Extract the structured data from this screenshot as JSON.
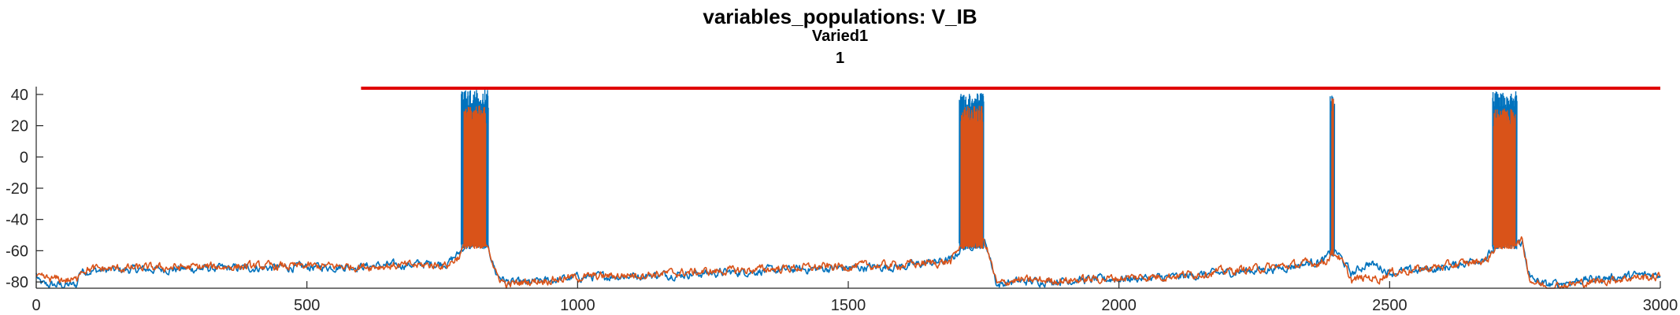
{
  "title": "variables_populations: V_IB",
  "subtitle_1": "Varied1",
  "subtitle_2": "1",
  "colors": {
    "series_blue": "#0072bd",
    "series_orange": "#d95319",
    "threshold_red": "#e00000",
    "axis": "#262626"
  },
  "chart_data": {
    "type": "line",
    "title": "variables_populations: V_IB",
    "xlabel": "",
    "ylabel": "",
    "xlim": [
      0,
      3000
    ],
    "ylim": [
      -84,
      45
    ],
    "x_ticks": [
      0,
      500,
      1000,
      1500,
      2000,
      2500,
      3000
    ],
    "y_ticks": [
      -80,
      -60,
      -40,
      -20,
      0,
      20,
      40
    ],
    "grid": false,
    "legend": "none",
    "threshold_line": {
      "y": 44,
      "x_start": 600,
      "x_end": 3000
    },
    "series": [
      {
        "color": "#0072bd",
        "baseline": [
          [
            0,
            -75
          ],
          [
            5,
            -80
          ],
          [
            15,
            -82
          ],
          [
            75,
            -82
          ],
          [
            80,
            -73
          ],
          [
            200,
            -72
          ],
          [
            400,
            -71
          ],
          [
            600,
            -70
          ],
          [
            760,
            -68
          ],
          [
            780,
            -62
          ],
          [
            795,
            -55
          ],
          [
            835,
            -58
          ],
          [
            850,
            -75
          ],
          [
            870,
            -80
          ],
          [
            900,
            -81
          ],
          [
            1000,
            -77
          ],
          [
            1200,
            -75
          ],
          [
            1400,
            -72
          ],
          [
            1600,
            -70
          ],
          [
            1690,
            -66
          ],
          [
            1710,
            -58
          ],
          [
            1750,
            -54
          ],
          [
            1755,
            -56
          ],
          [
            1775,
            -82
          ],
          [
            1800,
            -80
          ],
          [
            1900,
            -79
          ],
          [
            2100,
            -77
          ],
          [
            2300,
            -71
          ],
          [
            2380,
            -66
          ],
          [
            2395,
            -60
          ],
          [
            2405,
            -62
          ],
          [
            2430,
            -75
          ],
          [
            2460,
            -68
          ],
          [
            2480,
            -70
          ],
          [
            2500,
            -74
          ],
          [
            2600,
            -71
          ],
          [
            2680,
            -64
          ],
          [
            2700,
            -56
          ],
          [
            2745,
            -55
          ],
          [
            2760,
            -78
          ],
          [
            2790,
            -82
          ],
          [
            2850,
            -79
          ],
          [
            2950,
            -76
          ],
          [
            3000,
            -75
          ]
        ],
        "bursts": [
          [
            785,
            835,
            -55,
            43
          ],
          [
            1705,
            1750,
            -55,
            41
          ],
          [
            2390,
            2398,
            -60,
            40
          ],
          [
            2690,
            2735,
            -55,
            42
          ]
        ]
      },
      {
        "color": "#d95319",
        "baseline": [
          [
            0,
            -76
          ],
          [
            5,
            -78
          ],
          [
            15,
            -78
          ],
          [
            75,
            -79
          ],
          [
            80,
            -72
          ],
          [
            200,
            -71
          ],
          [
            400,
            -70
          ],
          [
            600,
            -70
          ],
          [
            760,
            -69
          ],
          [
            780,
            -64
          ],
          [
            795,
            -55
          ],
          [
            835,
            -56
          ],
          [
            850,
            -76
          ],
          [
            870,
            -82
          ],
          [
            900,
            -80
          ],
          [
            1000,
            -77
          ],
          [
            1200,
            -74
          ],
          [
            1400,
            -71
          ],
          [
            1600,
            -69
          ],
          [
            1690,
            -67
          ],
          [
            1710,
            -55
          ],
          [
            1750,
            -54
          ],
          [
            1755,
            -57
          ],
          [
            1775,
            -82
          ],
          [
            1800,
            -79
          ],
          [
            1900,
            -79
          ],
          [
            2100,
            -76
          ],
          [
            2300,
            -70
          ],
          [
            2380,
            -67
          ],
          [
            2395,
            -61
          ],
          [
            2405,
            -63
          ],
          [
            2430,
            -79
          ],
          [
            2460,
            -77
          ],
          [
            2480,
            -78
          ],
          [
            2500,
            -74
          ],
          [
            2600,
            -70
          ],
          [
            2680,
            -66
          ],
          [
            2700,
            -55
          ],
          [
            2745,
            -54
          ],
          [
            2760,
            -79
          ],
          [
            2790,
            -83
          ],
          [
            2850,
            -81
          ],
          [
            2950,
            -77
          ],
          [
            3000,
            -77
          ]
        ],
        "bursts": [
          [
            790,
            830,
            -55,
            33
          ],
          [
            1708,
            1748,
            -55,
            33
          ],
          [
            2393,
            2396,
            -60,
            38
          ],
          [
            2692,
            2732,
            -55,
            31
          ]
        ]
      }
    ]
  }
}
